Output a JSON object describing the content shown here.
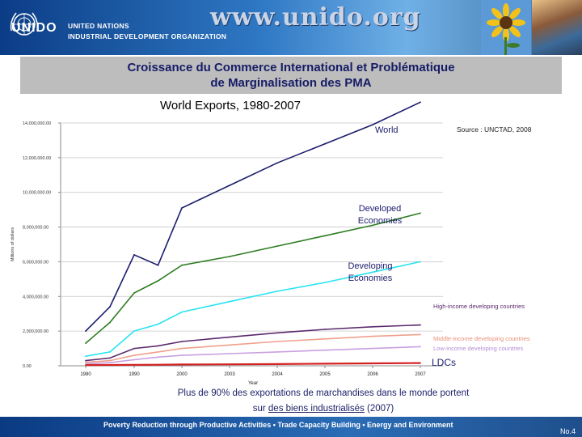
{
  "header": {
    "org_line1": "UNITED NATIONS",
    "org_line2": "INDUSTRIAL DEVELOPMENT ORGANIZATION",
    "website": "www.unido.org",
    "logo_text": "UNIDO"
  },
  "slide": {
    "title_line1": "Croissance du Commerce International et Problématique",
    "title_line2": "de Marginalisation des PMA",
    "footnote_line1": "Plus de 90% des exportations de marchandises dans le monde portent",
    "footnote_line2_a": "sur ",
    "footnote_line2_b": "des biens industrialisés",
    "footnote_line2_c": " (2007)"
  },
  "footer": {
    "motto": "Poverty Reduction through Productive Activities  •  Trade Capacity Building  •  Energy and Environment",
    "page": "No.4"
  },
  "colors": {
    "world": "#1c1d6e",
    "developed": "#2e7d22",
    "developing": "#29e3f2",
    "high_income": "#5c2a6e",
    "middle_income": "#f0a08c",
    "low_income": "#c9a0e0",
    "ldc": "#d42020"
  },
  "chart_data": {
    "type": "line",
    "title": "World Exports, 1980-2007",
    "source": "Source : UNCTAD, 2008",
    "ylabel": "Millions of dollars",
    "xlabel": "Year",
    "x": [
      1980,
      1985,
      1990,
      1995,
      2000,
      2003,
      2004,
      2005,
      2006,
      2007
    ],
    "x_ticks": [
      "1980",
      "1990",
      "2000",
      "2003",
      "2004",
      "2005",
      "2006",
      "2007"
    ],
    "y_ticks": [
      "0.00",
      "2,000,000.00",
      "4,000,000.00",
      "6,000,000.00",
      "8,000,000.00",
      "10,000,000.00",
      "12,000,000.00",
      "14,000,000.00"
    ],
    "ylim": [
      0,
      14000000
    ],
    "series": [
      {
        "name": "World",
        "color_key": "world",
        "values": [
          2000000,
          3400000,
          6400000,
          5800000,
          9100000,
          10400000,
          11700000,
          12800000,
          13900000,
          15200000
        ]
      },
      {
        "name": "Developed Economies",
        "color_key": "developed",
        "values": [
          1300000,
          2500000,
          4200000,
          4900000,
          5800000,
          6300000,
          6900000,
          7500000,
          8100000,
          8800000
        ]
      },
      {
        "name": "Developing Economies",
        "color_key": "developing",
        "values": [
          550000,
          800000,
          2000000,
          2400000,
          3100000,
          3700000,
          4300000,
          4800000,
          5400000,
          6000000
        ]
      },
      {
        "name": "High-income developing countries",
        "color_key": "high_income",
        "values": [
          300000,
          450000,
          1000000,
          1150000,
          1400000,
          1650000,
          1900000,
          2100000,
          2250000,
          2350000
        ]
      },
      {
        "name": "Middle-income developing countries",
        "color_key": "middle_income",
        "values": [
          200000,
          300000,
          600000,
          800000,
          1000000,
          1200000,
          1400000,
          1550000,
          1700000,
          1800000
        ]
      },
      {
        "name": "Low-income developing countries",
        "color_key": "low_income",
        "values": [
          120000,
          180000,
          350000,
          500000,
          600000,
          700000,
          800000,
          900000,
          1000000,
          1100000
        ]
      },
      {
        "name": "LDCs",
        "color_key": "ldc",
        "values": [
          40000,
          45000,
          55000,
          60000,
          75000,
          85000,
          100000,
          120000,
          140000,
          160000
        ]
      }
    ]
  }
}
